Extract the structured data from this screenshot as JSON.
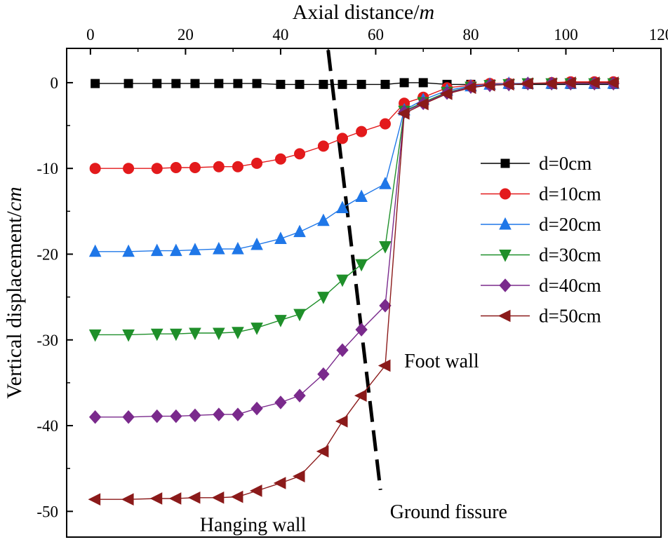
{
  "chart_data": {
    "type": "line",
    "xlabel": "Axial distance/",
    "xlabel_unit": "m",
    "ylabel": "Vertical displacement/",
    "ylabel_unit": "cm",
    "xlim": [
      -5,
      120
    ],
    "ylim": [
      -53,
      4
    ],
    "x_ticks": [
      0,
      20,
      40,
      60,
      80,
      100,
      120
    ],
    "y_ticks": [
      0,
      -10,
      -20,
      -30,
      -40,
      -50
    ],
    "x_axis_position": "top",
    "grid": false,
    "legend_position": "right",
    "series": [
      {
        "name": "d=0cm",
        "marker": "square",
        "color": "#000000",
        "x": [
          1,
          8,
          14,
          18,
          22,
          27,
          31,
          35,
          40,
          44,
          49,
          53,
          57,
          62,
          66,
          70,
          75,
          80,
          84,
          88,
          92,
          97,
          101,
          106,
          110
        ],
        "y": [
          -0.1,
          -0.1,
          -0.1,
          -0.1,
          -0.1,
          -0.1,
          -0.1,
          -0.1,
          -0.2,
          -0.2,
          -0.2,
          -0.2,
          -0.2,
          -0.2,
          0.0,
          0.0,
          -0.2,
          -0.2,
          -0.2,
          -0.2,
          -0.2,
          -0.2,
          -0.2,
          -0.2,
          -0.2
        ]
      },
      {
        "name": "d=10cm",
        "marker": "circle",
        "color": "#e31a1c",
        "x": [
          1,
          8,
          14,
          18,
          22,
          27,
          31,
          35,
          40,
          44,
          49,
          53,
          57,
          62,
          66,
          70,
          75,
          80,
          84,
          88,
          92,
          97,
          101,
          106,
          110
        ],
        "y": [
          -10.0,
          -10.0,
          -10.0,
          -9.9,
          -9.9,
          -9.8,
          -9.8,
          -9.4,
          -8.9,
          -8.3,
          -7.4,
          -6.5,
          -5.7,
          -4.8,
          -2.4,
          -1.7,
          -0.6,
          -0.3,
          -0.1,
          -0.1,
          -0.1,
          0.0,
          0.1,
          0.1,
          0.1
        ]
      },
      {
        "name": "d=20cm",
        "marker": "triangle-up",
        "color": "#1f77e8",
        "x": [
          1,
          8,
          14,
          18,
          22,
          27,
          31,
          35,
          40,
          44,
          49,
          53,
          57,
          62,
          66,
          70,
          75,
          80,
          84,
          88,
          92,
          97,
          101,
          106,
          110
        ],
        "y": [
          -19.7,
          -19.7,
          -19.6,
          -19.6,
          -19.5,
          -19.4,
          -19.4,
          -18.9,
          -18.2,
          -17.4,
          -16.1,
          -14.6,
          -13.3,
          -11.8,
          -3.2,
          -2.0,
          -0.9,
          -0.4,
          -0.2,
          -0.1,
          -0.1,
          -0.1,
          -0.1,
          -0.1,
          -0.1
        ]
      },
      {
        "name": "d=30cm",
        "marker": "triangle-down",
        "color": "#1f8f2a",
        "x": [
          1,
          8,
          14,
          18,
          22,
          27,
          31,
          35,
          40,
          44,
          49,
          53,
          57,
          62,
          66,
          70,
          75,
          80,
          84,
          88,
          92,
          97,
          101,
          106,
          110
        ],
        "y": [
          -29.4,
          -29.4,
          -29.3,
          -29.3,
          -29.2,
          -29.2,
          -29.1,
          -28.6,
          -27.7,
          -27.0,
          -25.0,
          -23.0,
          -21.2,
          -19.1,
          -3.3,
          -2.3,
          -1.1,
          -0.5,
          -0.3,
          -0.2,
          -0.1,
          -0.1,
          -0.1,
          -0.1,
          -0.1
        ]
      },
      {
        "name": "d=40cm",
        "marker": "diamond",
        "color": "#7a2a8c",
        "x": [
          1,
          8,
          14,
          18,
          22,
          27,
          31,
          35,
          40,
          44,
          49,
          53,
          57,
          62,
          66,
          70,
          75,
          80,
          84,
          88,
          92,
          97,
          101,
          106,
          110
        ],
        "y": [
          -39.0,
          -39.0,
          -38.9,
          -38.9,
          -38.8,
          -38.7,
          -38.7,
          -38.0,
          -37.3,
          -36.5,
          -34.0,
          -31.2,
          -28.8,
          -26.0,
          -3.4,
          -2.4,
          -1.2,
          -0.5,
          -0.3,
          -0.2,
          -0.1,
          -0.1,
          -0.1,
          -0.1,
          -0.1
        ]
      },
      {
        "name": "d=50cm",
        "marker": "triangle-left",
        "color": "#8b1a1a",
        "x": [
          1,
          8,
          14,
          18,
          22,
          27,
          31,
          35,
          40,
          44,
          49,
          53,
          57,
          62,
          66,
          70,
          75,
          80,
          84,
          88,
          92,
          97,
          101,
          106,
          110
        ],
        "y": [
          -48.6,
          -48.6,
          -48.5,
          -48.5,
          -48.4,
          -48.4,
          -48.3,
          -47.6,
          -46.7,
          -45.9,
          -43.0,
          -39.5,
          -36.5,
          -33.0,
          -3.6,
          -2.5,
          -1.3,
          -0.6,
          -0.3,
          -0.2,
          -0.1,
          -0.1,
          0.0,
          0.0,
          0.0
        ]
      }
    ],
    "fissure_line": {
      "x": [
        50,
        61
      ],
      "y": [
        3.8,
        -47.5
      ]
    },
    "annotations": [
      {
        "text": "Foot wall",
        "x": 66,
        "y": -33.2
      },
      {
        "text": "Ground fissure",
        "x": 63,
        "y": -50.8
      },
      {
        "text": "Hanging wall",
        "x": 23,
        "y": -52.3
      }
    ]
  }
}
